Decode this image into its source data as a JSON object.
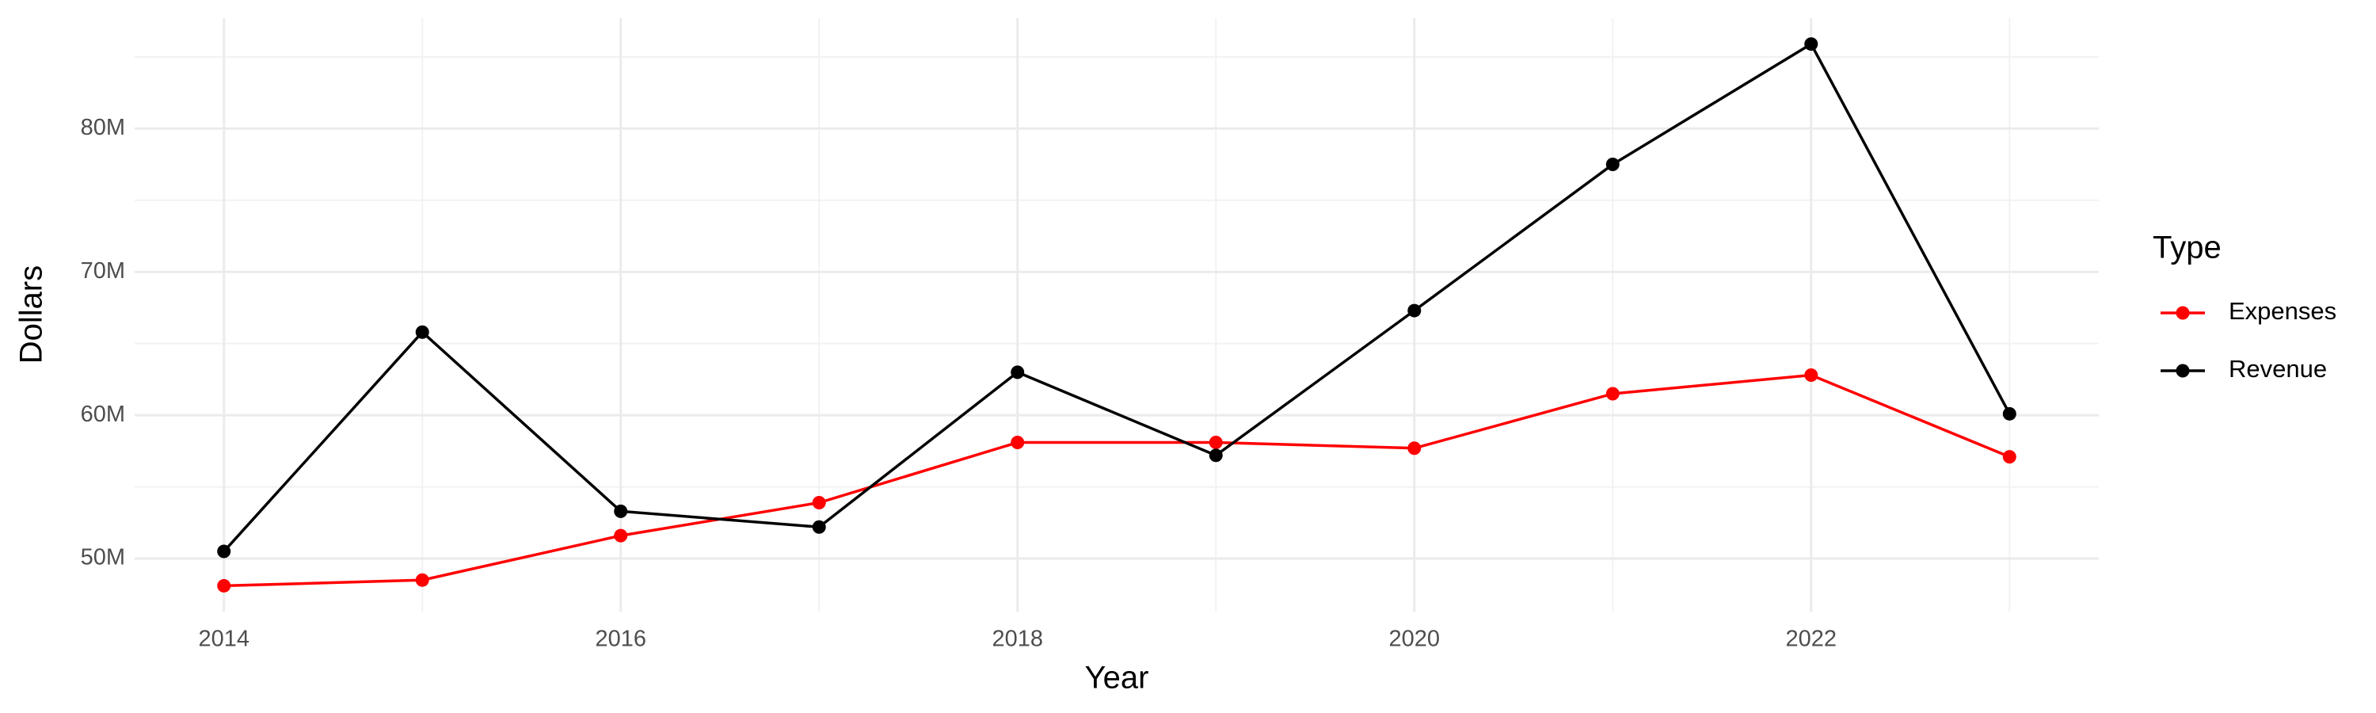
{
  "chart_data": {
    "type": "line",
    "x_label": "Year",
    "y_label": "Dollars",
    "legend_title": "Type",
    "x": [
      2014,
      2015,
      2016,
      2017,
      2018,
      2019,
      2020,
      2021,
      2022,
      2023
    ],
    "series": [
      {
        "name": "Expenses",
        "color": "#ff0000",
        "values": [
          48100000,
          48500000,
          51600000,
          53900000,
          58100000,
          58100000,
          57700000,
          61500000,
          62800000,
          57100000
        ]
      },
      {
        "name": "Revenue",
        "color": "#000000",
        "values": [
          50500000,
          65800000,
          53300000,
          52200000,
          63000000,
          57200000,
          67300000,
          77500000,
          85900000,
          60100000
        ]
      }
    ],
    "xlim": [
      2013.55,
      2023.45
    ],
    "xticks": [
      2014,
      2016,
      2018,
      2020,
      2022
    ],
    "x_minor_ticks": [
      2015,
      2017,
      2019,
      2021,
      2023
    ],
    "ylim": [
      46300000,
      87700000
    ],
    "yticks": [
      {
        "value": 50000000,
        "label": "50M"
      },
      {
        "value": 60000000,
        "label": "60M"
      },
      {
        "value": 70000000,
        "label": "70M"
      },
      {
        "value": 80000000,
        "label": "80M"
      }
    ],
    "y_minor_ticks": [
      55000000,
      65000000,
      75000000,
      85000000
    ],
    "grid": true,
    "legend_position": "right"
  }
}
